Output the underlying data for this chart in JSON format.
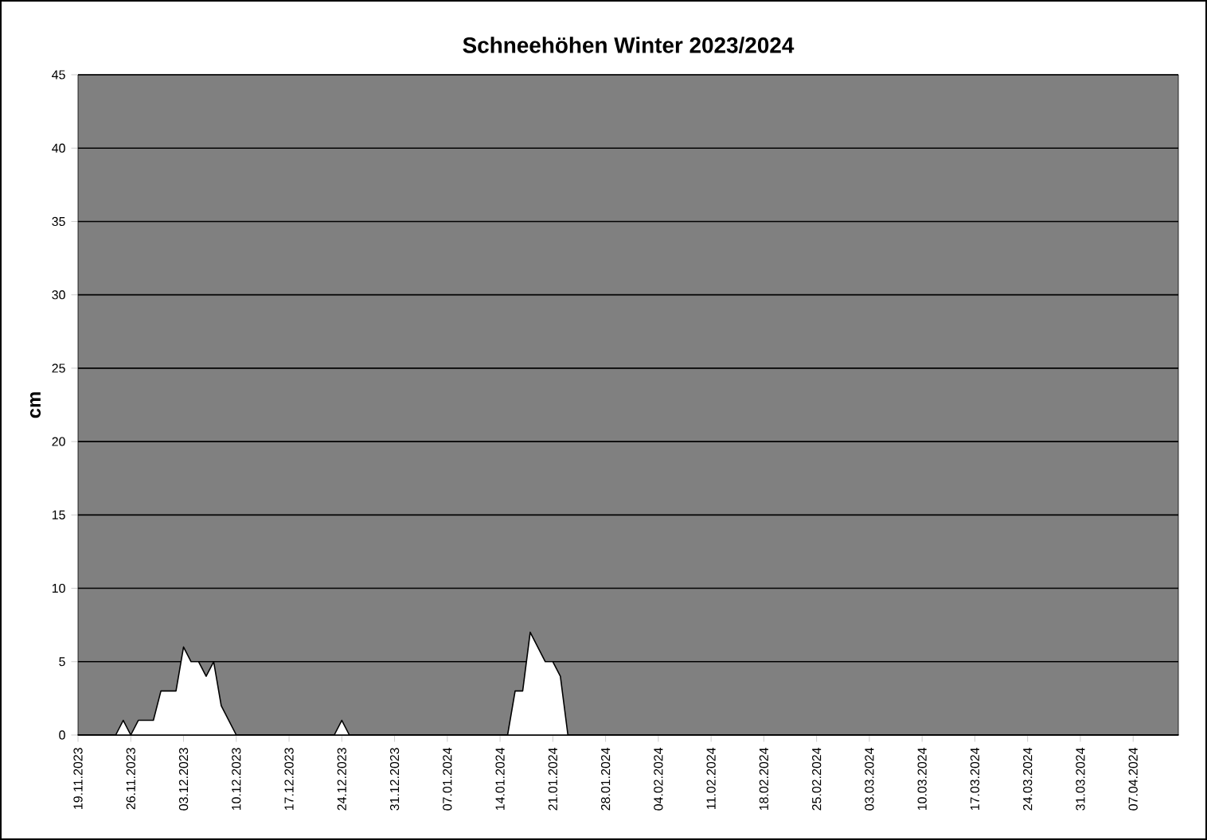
{
  "chart_data": {
    "type": "area",
    "title": "Schneehöhen Winter 2023/2024",
    "ylabel": "cm",
    "x": [
      "2023-11-19",
      "2023-11-24",
      "2023-11-25",
      "2023-11-26",
      "2023-11-27",
      "2023-11-29",
      "2023-11-30",
      "2023-12-02",
      "2023-12-03",
      "2023-12-04",
      "2023-12-05",
      "2023-12-06",
      "2023-12-07",
      "2023-12-08",
      "2023-12-09",
      "2023-12-10",
      "2023-12-23",
      "2023-12-24",
      "2023-12-25",
      "2024-01-15",
      "2024-01-16",
      "2024-01-17",
      "2024-01-18",
      "2024-01-19",
      "2024-01-20",
      "2024-01-21",
      "2024-01-22",
      "2024-01-23",
      "2024-04-13"
    ],
    "values": [
      0,
      0,
      1,
      0,
      1,
      1,
      3,
      3,
      6,
      5,
      5,
      4,
      5,
      2,
      1,
      0,
      0,
      1,
      0,
      0,
      3,
      3,
      7,
      6,
      5,
      5,
      4,
      0,
      0
    ],
    "color": "#ffffff",
    "xlim": [
      "2023-11-19",
      "2024-04-13"
    ],
    "xticks": [
      {
        "value": "2023-11-19",
        "label": "19.11.2023"
      },
      {
        "value": "2023-11-26",
        "label": "26.11.2023"
      },
      {
        "value": "2023-12-03",
        "label": "03.12.2023"
      },
      {
        "value": "2023-12-10",
        "label": "10.12.2023"
      },
      {
        "value": "2023-12-17",
        "label": "17.12.2023"
      },
      {
        "value": "2023-12-24",
        "label": "24.12.2023"
      },
      {
        "value": "2023-12-31",
        "label": "31.12.2023"
      },
      {
        "value": "2024-01-07",
        "label": "07.01.2024"
      },
      {
        "value": "2024-01-14",
        "label": "14.01.2024"
      },
      {
        "value": "2024-01-21",
        "label": "21.01.2024"
      },
      {
        "value": "2024-01-28",
        "label": "28.01.2024"
      },
      {
        "value": "2024-02-04",
        "label": "04.02.2024"
      },
      {
        "value": "2024-02-11",
        "label": "11.02.2024"
      },
      {
        "value": "2024-02-18",
        "label": "18.02.2024"
      },
      {
        "value": "2024-02-25",
        "label": "25.02.2024"
      },
      {
        "value": "2024-03-03",
        "label": "03.03.2024"
      },
      {
        "value": "2024-03-10",
        "label": "10.03.2024"
      },
      {
        "value": "2024-03-17",
        "label": "17.03.2024"
      },
      {
        "value": "2024-03-24",
        "label": "24.03.2024"
      },
      {
        "value": "2024-03-31",
        "label": "31.03.2024"
      },
      {
        "value": "2024-04-07",
        "label": "07.04.2024"
      }
    ],
    "ylim": [
      0,
      45
    ],
    "yticks": [
      0,
      5,
      10,
      15,
      20,
      25,
      30,
      35,
      40,
      45
    ],
    "grid": "y"
  }
}
